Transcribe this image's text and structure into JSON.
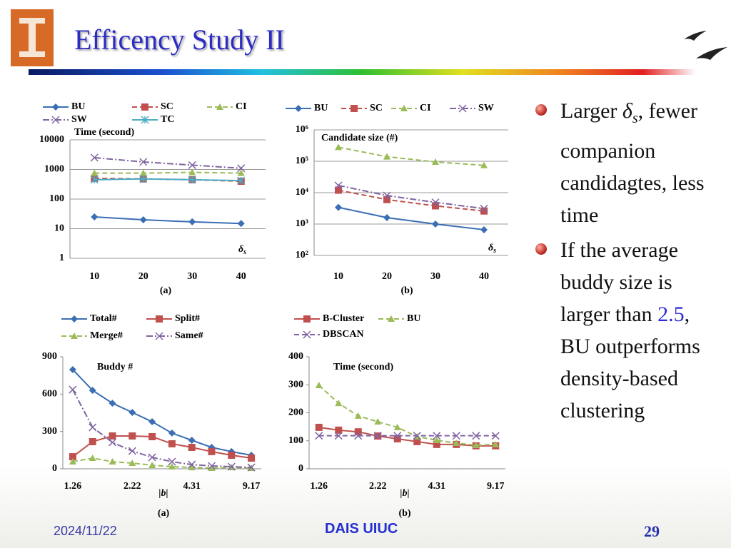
{
  "slide": {
    "title": "Efficency Study II",
    "bullets": [
      [
        "Larger ",
        "δ",
        "s",
        ", fewer companion candidagtes, less time"
      ],
      [
        "If the average buddy size is larger than ",
        "2.5",
        ", BU outperforms density-based clustering"
      ]
    ],
    "footer": {
      "date": "2024/11/22",
      "org": "DAIS UIUC",
      "page": "29"
    }
  },
  "chart_data": [
    {
      "type": "line",
      "log_y": true,
      "grid": true,
      "y_label": "Time (second)",
      "annotation": {
        "text": "δ",
        "sub": "s"
      },
      "caption": "(a)",
      "categories": [
        "10",
        "20",
        "30",
        "40"
      ],
      "ylim": [
        1,
        10000
      ],
      "yticks": [
        1,
        10,
        100,
        1000,
        10000
      ],
      "series": [
        {
          "name": "BU",
          "color": "#3c6eb4",
          "marker": "diamond",
          "line_style": "solid",
          "values": [
            25,
            20,
            17,
            15
          ]
        },
        {
          "name": "SC",
          "color": "#c0504d",
          "marker": "square",
          "line_style": "dashed",
          "values": [
            500,
            480,
            450,
            400
          ]
        },
        {
          "name": "CI",
          "color": "#9bbb59",
          "marker": "triangle",
          "line_style": "dashed",
          "values": [
            750,
            750,
            800,
            750
          ]
        },
        {
          "name": "SW",
          "color": "#8064a2",
          "marker": "x",
          "line_style": "dashdot",
          "values": [
            2500,
            1800,
            1400,
            1100
          ]
        },
        {
          "name": "TC",
          "color": "#4bacc6",
          "marker": "asterisk",
          "line_style": "solid",
          "values": [
            450,
            480,
            450,
            420
          ]
        }
      ]
    },
    {
      "type": "line",
      "log_y": true,
      "grid": true,
      "y_label": "Candidate size (#)",
      "annotation": {
        "text": "δ",
        "sub": "s"
      },
      "caption": "(b)",
      "categories": [
        "10",
        "20",
        "30",
        "40"
      ],
      "ylim": [
        100,
        1000000
      ],
      "yticks": [
        {
          "value": 100,
          "label": "10²"
        },
        {
          "value": 1000,
          "label": "10³"
        },
        {
          "value": 10000,
          "label": "10⁴"
        },
        {
          "value": 100000,
          "label": "10⁵"
        },
        {
          "value": 1000000,
          "label": "10⁶"
        }
      ],
      "series": [
        {
          "name": "BU",
          "color": "#3c6eb4",
          "marker": "diamond",
          "line_style": "solid",
          "values": [
            3400,
            1600,
            1000,
            660
          ]
        },
        {
          "name": "SC",
          "color": "#c0504d",
          "marker": "square",
          "line_style": "dashed",
          "values": [
            12000,
            6000,
            3800,
            2600
          ]
        },
        {
          "name": "CI",
          "color": "#9bbb59",
          "marker": "triangle",
          "line_style": "dashed",
          "values": [
            280000,
            140000,
            95000,
            74000
          ]
        },
        {
          "name": "SW",
          "color": "#8064a2",
          "marker": "x",
          "line_style": "dashdot",
          "values": [
            17000,
            8100,
            4900,
            3100
          ]
        }
      ]
    },
    {
      "type": "line",
      "log_y": false,
      "grid": false,
      "y_label": "Buddy #",
      "x_label": "|b|",
      "caption": "(a)",
      "categories": [
        "1.26",
        null,
        null,
        "2.22",
        null,
        null,
        "4.31",
        null,
        null,
        "9.17"
      ],
      "ylim": [
        0,
        900
      ],
      "yticks": [
        0,
        300,
        600,
        900
      ],
      "series": [
        {
          "name": "Total#",
          "color": "#3c6eb4",
          "marker": "diamond",
          "line_style": "solid",
          "values": [
            797,
            630,
            527,
            453,
            378,
            287,
            229,
            172,
            138,
            109
          ]
        },
        {
          "name": "Split#",
          "color": "#c0504d",
          "marker": "square",
          "line_style": "solid",
          "values": [
            97,
            218,
            264,
            264,
            258,
            201,
            172,
            138,
            109,
            86
          ]
        },
        {
          "name": "Merge#",
          "color": "#9bbb59",
          "marker": "triangle",
          "line_style": "dashed",
          "values": [
            57,
            86,
            57,
            46,
            29,
            17,
            11,
            6,
            11,
            6
          ]
        },
        {
          "name": "Same#",
          "color": "#8064a2",
          "marker": "x",
          "line_style": "dashdot",
          "values": [
            636,
            333,
            212,
            143,
            92,
            57,
            34,
            23,
            17,
            11
          ]
        }
      ]
    },
    {
      "type": "line",
      "log_y": false,
      "grid": false,
      "y_label": "Time (second)",
      "x_label": "|b|",
      "caption": "(b)",
      "categories": [
        "1.26",
        null,
        null,
        "2.22",
        null,
        null,
        "4.31",
        null,
        null,
        "9.17"
      ],
      "ylim": [
        0,
        400
      ],
      "yticks": [
        0,
        100,
        200,
        300,
        400
      ],
      "series": [
        {
          "name": "B-Cluster",
          "color": "#c0504d",
          "marker": "square",
          "line_style": "solid",
          "values": [
            148,
            138,
            132,
            117,
            107,
            97,
            87,
            87,
            82,
            82
          ]
        },
        {
          "name": "BU",
          "color": "#9bbb59",
          "marker": "triangle",
          "line_style": "dashed",
          "values": [
            298,
            234,
            189,
            168,
            148,
            115,
            102,
            92,
            84,
            87
          ]
        },
        {
          "name": "DBSCAN",
          "color": "#8064a2",
          "marker": "x",
          "line_style": "dashed",
          "values": [
            118,
            118,
            118,
            118,
            118,
            118,
            118,
            118,
            118,
            118
          ]
        }
      ]
    }
  ]
}
